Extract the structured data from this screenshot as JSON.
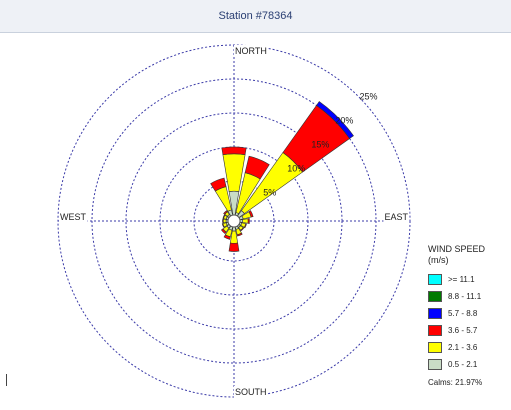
{
  "window": {
    "title": "Station #78364"
  },
  "chart_data": {
    "type": "wind-rose",
    "title": "",
    "directions": [
      "N",
      "NNE",
      "NE",
      "ENE",
      "E",
      "ESE",
      "SE",
      "SSE",
      "S",
      "SSW",
      "SW",
      "WSW",
      "W",
      "WNW",
      "NW",
      "NNW"
    ],
    "series": [
      {
        "name": "0.5 - 2.1",
        "color": "#c9dcc6",
        "values": [
          3.5,
          0.4,
          1.0,
          0.5,
          0.4,
          0.3,
          0.3,
          0.4,
          0.6,
          0.5,
          0.4,
          0.3,
          0.3,
          0.3,
          0.3,
          0.8
        ]
      },
      {
        "name": "2.1 - 3.6",
        "color": "#ffff00",
        "values": [
          5.5,
          6.0,
          10.5,
          1.2,
          0.8,
          0.6,
          0.5,
          0.8,
          1.8,
          1.0,
          0.7,
          0.5,
          0.4,
          0.4,
          0.5,
          3.5
        ]
      },
      {
        "name": "3.6 - 5.7",
        "color": "#ff0000",
        "values": [
          1.0,
          2.5,
          8.5,
          0.3,
          0.2,
          0.1,
          0.1,
          0.2,
          1.2,
          0.4,
          0.3,
          0.1,
          0.1,
          0.1,
          0.2,
          1.3
        ]
      },
      {
        "name": "5.7 - 8.8",
        "color": "#0000ff",
        "values": [
          0,
          0,
          0.7,
          0,
          0,
          0,
          0,
          0,
          0,
          0,
          0,
          0,
          0,
          0,
          0,
          0
        ]
      },
      {
        "name": "8.8 - 11.1",
        "color": "#007a00",
        "values": [
          0,
          0,
          0,
          0,
          0,
          0,
          0,
          0,
          0,
          0,
          0,
          0,
          0,
          0,
          0,
          0
        ]
      },
      {
        "name": ">= 11.1",
        "color": "#00ffff",
        "values": [
          0,
          0,
          0,
          0,
          0,
          0,
          0,
          0,
          0,
          0,
          0,
          0,
          0,
          0,
          0,
          0
        ]
      }
    ],
    "rings": [
      5,
      10,
      15,
      20,
      25
    ],
    "ring_labels": [
      "5%",
      "10%",
      "15%",
      "20%",
      "25%"
    ],
    "max": 25,
    "compass": {
      "north": "NORTH",
      "south": "SOUTH",
      "east": "EAST",
      "west": "WEST"
    },
    "legend": {
      "title": "WIND SPEED",
      "unit": "(m/s)",
      "items": [
        {
          "label": ">= 11.1",
          "color": "#00ffff"
        },
        {
          "label": "8.8 - 11.1",
          "color": "#007a00"
        },
        {
          "label": "5.7 - 8.8",
          "color": "#0000ff"
        },
        {
          "label": "3.6 - 5.7",
          "color": "#ff0000"
        },
        {
          "label": "2.1 - 3.6",
          "color": "#ffff00"
        },
        {
          "label": "0.5 - 2.1",
          "color": "#c9dcc6"
        }
      ],
      "calms": "Calms: 21.97%"
    },
    "grid": true
  }
}
